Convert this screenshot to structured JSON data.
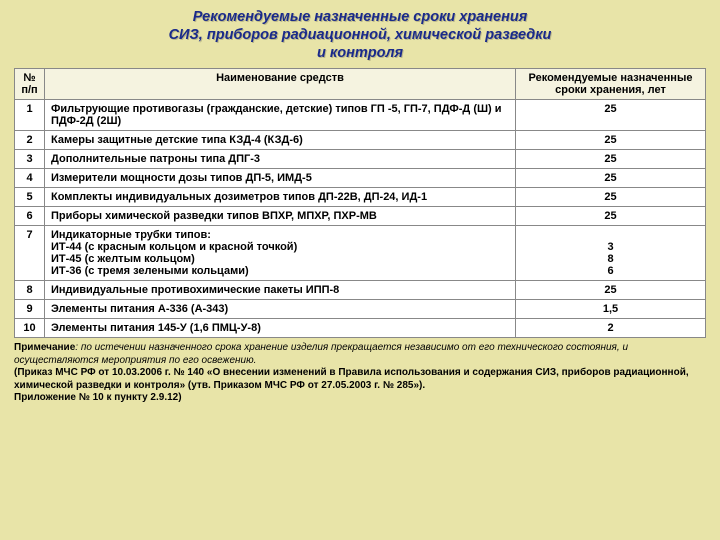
{
  "title_lines": [
    "Рекомендуемые назначенные сроки хранения",
    "СИЗ, приборов радиационной, химической разведки",
    "и контроля"
  ],
  "columns": {
    "num": "№ п/п",
    "name": "Наименование средств",
    "val": "Рекомендуемые назначенные сроки хранения, лет"
  },
  "rows": [
    {
      "n": "1",
      "name": "Фильтрующие противогазы (гражданские, детские) типов ГП -5, ГП-7, ПДФ-Д (Ш) и ПДФ-2Д (2Ш)",
      "val": "25"
    },
    {
      "n": "2",
      "name": "Камеры защитные детские типа КЗД-4 (КЗД-6)",
      "val": "25"
    },
    {
      "n": "3",
      "name": "Дополнительные патроны типа ДПГ-3",
      "val": "25"
    },
    {
      "n": "4",
      "name": "Измерители мощности дозы типов ДП-5, ИМД-5",
      "val": "25"
    },
    {
      "n": "5",
      "name": "Комплекты индивидуальных дозиметров типов ДП-22В, ДП-24, ИД-1",
      "val": "25"
    },
    {
      "n": "6",
      "name": "Приборы химической разведки типов ВПХР, МПХР, ПХР-МВ",
      "val": "25"
    },
    {
      "n": "7",
      "name_lines": [
        "Индикаторные трубки типов:",
        "ИТ-44 (с красным кольцом и красной точкой)",
        "ИТ-45 (с желтым кольцом)",
        "ИТ-36 (с тремя зелеными кольцами)"
      ],
      "val_lines": [
        "",
        "3",
        "8",
        "6"
      ]
    },
    {
      "n": "8",
      "name": "Индивидуальные противохимические пакеты ИПП-8",
      "val": "25"
    },
    {
      "n": "9",
      "name": "Элементы питания А-336 (А-343)",
      "val": "1,5"
    },
    {
      "n": "10",
      "name": "Элементы питания 145-У (1,6 ПМЦ-У-8)",
      "val": "2"
    }
  ],
  "footnote": {
    "line1_a": "Примечание",
    "line1_b": ": по истечении назначенного срока хранение изделия прекращается независимо от его технического состояния, и осуществляются мероприятия по его освежению.",
    "line2": "(Приказ МЧС РФ от 10.03.2006 г. № 140 «О внесении изменений в Правила использования и содержания СИЗ, приборов радиационной, химической разведки и контроля» (утв. Приказом МЧС РФ от 27.05.2003 г. № 285»).",
    "line3": "Приложение № 10 к пункту 2.9.12)"
  },
  "colors": {
    "page_bg": "#e8e4a8",
    "title_color": "#1a2a8a",
    "header_bg": "#f5f3e0",
    "border": "#888"
  }
}
